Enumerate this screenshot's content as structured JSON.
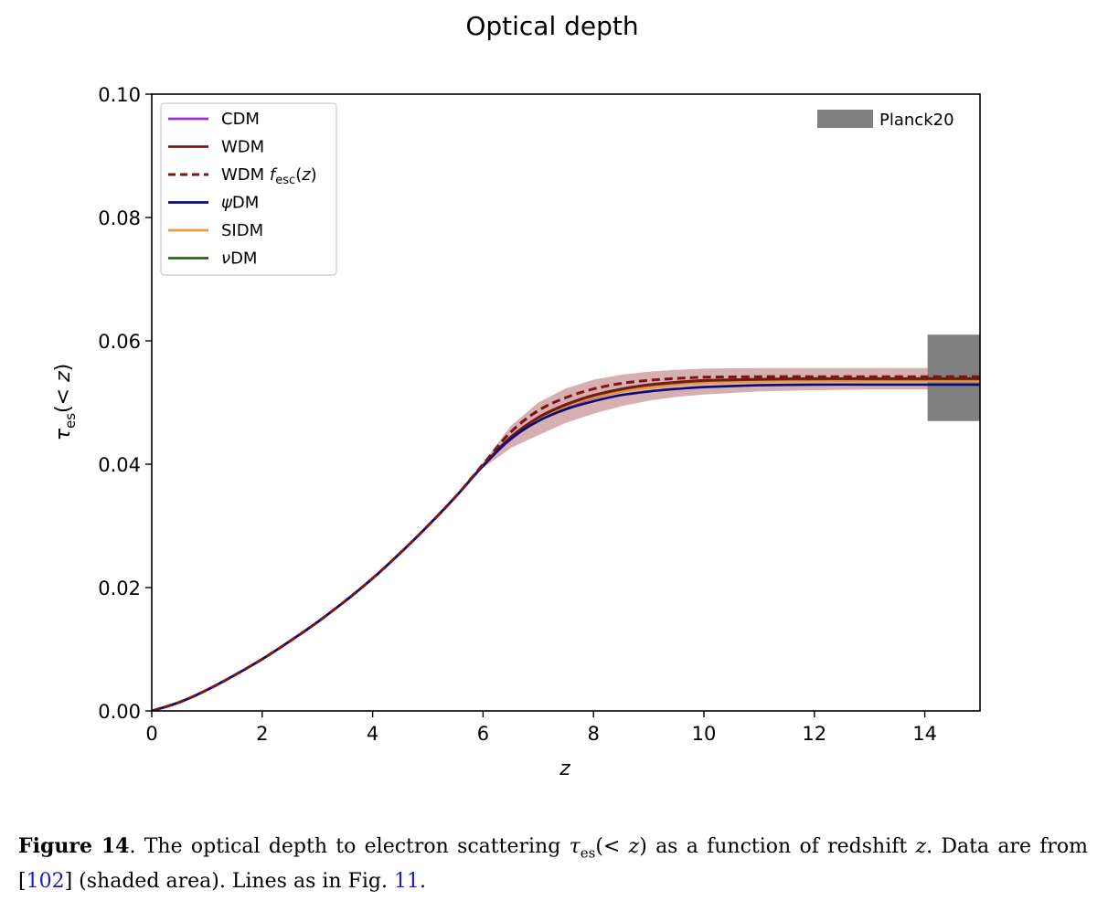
{
  "chart_data": {
    "type": "line",
    "title": "Optical depth",
    "xlabel": "z",
    "ylabel": "τ_es(<z)",
    "xlim": [
      0,
      15
    ],
    "ylim": [
      0,
      0.1
    ],
    "xticks": [
      0,
      2,
      4,
      6,
      8,
      10,
      12,
      14
    ],
    "yticks": [
      0.0,
      0.02,
      0.04,
      0.06,
      0.08,
      0.1
    ],
    "xtick_labels": [
      "0",
      "2",
      "4",
      "6",
      "8",
      "10",
      "12",
      "14"
    ],
    "ytick_labels": [
      "0.00",
      "0.02",
      "0.04",
      "0.06",
      "0.08",
      "0.10"
    ],
    "grid": false,
    "legend_placement": "top-left",
    "x": [
      0,
      0.5,
      1,
      1.5,
      2,
      2.5,
      3,
      3.5,
      4,
      4.5,
      5,
      5.5,
      6,
      6.5,
      7,
      7.5,
      8,
      8.5,
      9,
      9.5,
      10,
      11,
      12,
      13,
      14,
      15
    ],
    "series": [
      {
        "name": "CDM",
        "color": "#9932cc",
        "dash": false,
        "values": [
          0,
          0.0014,
          0.0034,
          0.0058,
          0.0084,
          0.0113,
          0.0144,
          0.0178,
          0.0215,
          0.0256,
          0.03,
          0.0347,
          0.0398,
          0.044,
          0.0471,
          0.0492,
          0.0507,
          0.0518,
          0.0525,
          0.053,
          0.0533,
          0.0536,
          0.0537,
          0.0538,
          0.0538,
          0.0538
        ]
      },
      {
        "name": "WDM",
        "color": "#7f1414",
        "dash": false,
        "values": [
          0,
          0.0014,
          0.0034,
          0.0058,
          0.0084,
          0.0113,
          0.0144,
          0.0178,
          0.0215,
          0.0256,
          0.03,
          0.0347,
          0.0398,
          0.0444,
          0.0476,
          0.0497,
          0.0512,
          0.0522,
          0.0529,
          0.0533,
          0.0536,
          0.0538,
          0.0539,
          0.0539,
          0.0539,
          0.0539
        ]
      },
      {
        "name": "WDM f_esc(z)",
        "color": "#7f1414",
        "dash": true,
        "values": [
          0,
          0.0014,
          0.0034,
          0.0058,
          0.0084,
          0.0113,
          0.0144,
          0.0178,
          0.0215,
          0.0256,
          0.03,
          0.0347,
          0.04,
          0.0452,
          0.0487,
          0.0508,
          0.0522,
          0.0531,
          0.0536,
          0.0539,
          0.0541,
          0.0542,
          0.0542,
          0.0542,
          0.0542,
          0.0542
        ]
      },
      {
        "name": "ψDM",
        "color": "#0a0a7a",
        "dash": false,
        "values": [
          0,
          0.0014,
          0.0034,
          0.0058,
          0.0084,
          0.0113,
          0.0144,
          0.0178,
          0.0215,
          0.0256,
          0.03,
          0.0347,
          0.0397,
          0.0441,
          0.047,
          0.0489,
          0.0502,
          0.0512,
          0.0518,
          0.0522,
          0.0525,
          0.0528,
          0.0529,
          0.0529,
          0.0529,
          0.0529
        ]
      },
      {
        "name": "SIDM",
        "color": "#f0963c",
        "dash": false,
        "values": [
          0,
          0.0014,
          0.0034,
          0.0058,
          0.0084,
          0.0113,
          0.0144,
          0.0178,
          0.0215,
          0.0256,
          0.03,
          0.0347,
          0.0398,
          0.0443,
          0.0474,
          0.0494,
          0.0508,
          0.0518,
          0.0524,
          0.0529,
          0.0532,
          0.0534,
          0.0535,
          0.0535,
          0.0535,
          0.0535
        ]
      },
      {
        "name": "νDM",
        "color": "#286418",
        "dash": false,
        "values": [
          0,
          0.0014,
          0.0034,
          0.0058,
          0.0084,
          0.0113,
          0.0144,
          0.0178,
          0.0215,
          0.0256,
          0.03,
          0.0347,
          0.0398,
          0.0444,
          0.0475,
          0.0496,
          0.0511,
          0.0521,
          0.0528,
          0.0532,
          0.0535,
          0.0537,
          0.0538,
          0.0538,
          0.0538,
          0.0538
        ]
      }
    ],
    "band": {
      "color": "#c89696",
      "upper": [
        0,
        0.0014,
        0.0034,
        0.0058,
        0.0084,
        0.0113,
        0.0144,
        0.0178,
        0.0215,
        0.0256,
        0.03,
        0.0347,
        0.0402,
        0.0462,
        0.05,
        0.0523,
        0.0537,
        0.0545,
        0.055,
        0.0553,
        0.0555,
        0.0556,
        0.0556,
        0.0556,
        0.0556,
        0.0556
      ],
      "lower": [
        0,
        0.0014,
        0.0034,
        0.0058,
        0.0084,
        0.0113,
        0.0144,
        0.0178,
        0.0215,
        0.0256,
        0.03,
        0.0347,
        0.0394,
        0.0426,
        0.0447,
        0.0467,
        0.0482,
        0.0494,
        0.0503,
        0.0509,
        0.0513,
        0.0518,
        0.052,
        0.0521,
        0.0521,
        0.0521
      ]
    },
    "planck": {
      "name": "Planck20",
      "color": "#808080",
      "x_range": [
        14.05,
        15
      ],
      "y_range": [
        0.047,
        0.061
      ]
    }
  },
  "caption": {
    "label": "Figure 14",
    "text_1": ".  The optical depth to electron scattering ",
    "tau_sym": "τ",
    "tau_sub": "es",
    "text_2": "(< ",
    "z1": "z",
    "text_3": ") as a function of redshift ",
    "z2": "z",
    "text_4": ".  Data are from [",
    "ref_1": "102",
    "text_5": "] (shaded area).  Lines as in Fig. ",
    "ref_2": "11",
    "text_6": "."
  }
}
